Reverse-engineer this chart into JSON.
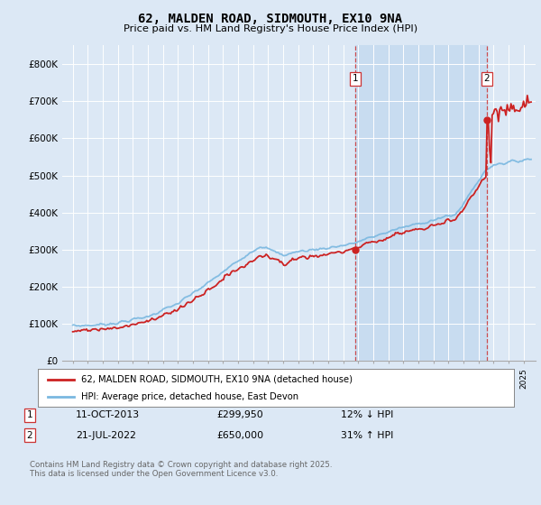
{
  "title": "62, MALDEN ROAD, SIDMOUTH, EX10 9NA",
  "subtitle": "Price paid vs. HM Land Registry's House Price Index (HPI)",
  "background_color": "#dce8f5",
  "plot_bg_color": "#dce8f5",
  "shade_color": "#c8dcf0",
  "grid_color": "#ffffff",
  "x_start_year": 1995,
  "x_end_year": 2026,
  "y_min": 0,
  "y_max": 850000,
  "y_ticks": [
    0,
    100000,
    200000,
    300000,
    400000,
    500000,
    600000,
    700000,
    800000
  ],
  "y_tick_labels": [
    "£0",
    "£100K",
    "£200K",
    "£300K",
    "£400K",
    "£500K",
    "£600K",
    "£700K",
    "£800K"
  ],
  "hpi_color": "#7ab8e0",
  "price_color": "#cc2222",
  "vline_color": "#cc3333",
  "transaction1_year": 2013.78,
  "transaction1_price": 299950,
  "transaction2_year": 2022.54,
  "transaction2_price": 650000,
  "legend_line1": "62, MALDEN ROAD, SIDMOUTH, EX10 9NA (detached house)",
  "legend_line2": "HPI: Average price, detached house, East Devon",
  "footer": "Contains HM Land Registry data © Crown copyright and database right 2025.\nThis data is licensed under the Open Government Licence v3.0.",
  "annotation1_date": "11-OCT-2013",
  "annotation1_price": "£299,950",
  "annotation1_pct": "12% ↓ HPI",
  "annotation2_date": "21-JUL-2022",
  "annotation2_price": "£650,000",
  "annotation2_pct": "31% ↑ HPI"
}
